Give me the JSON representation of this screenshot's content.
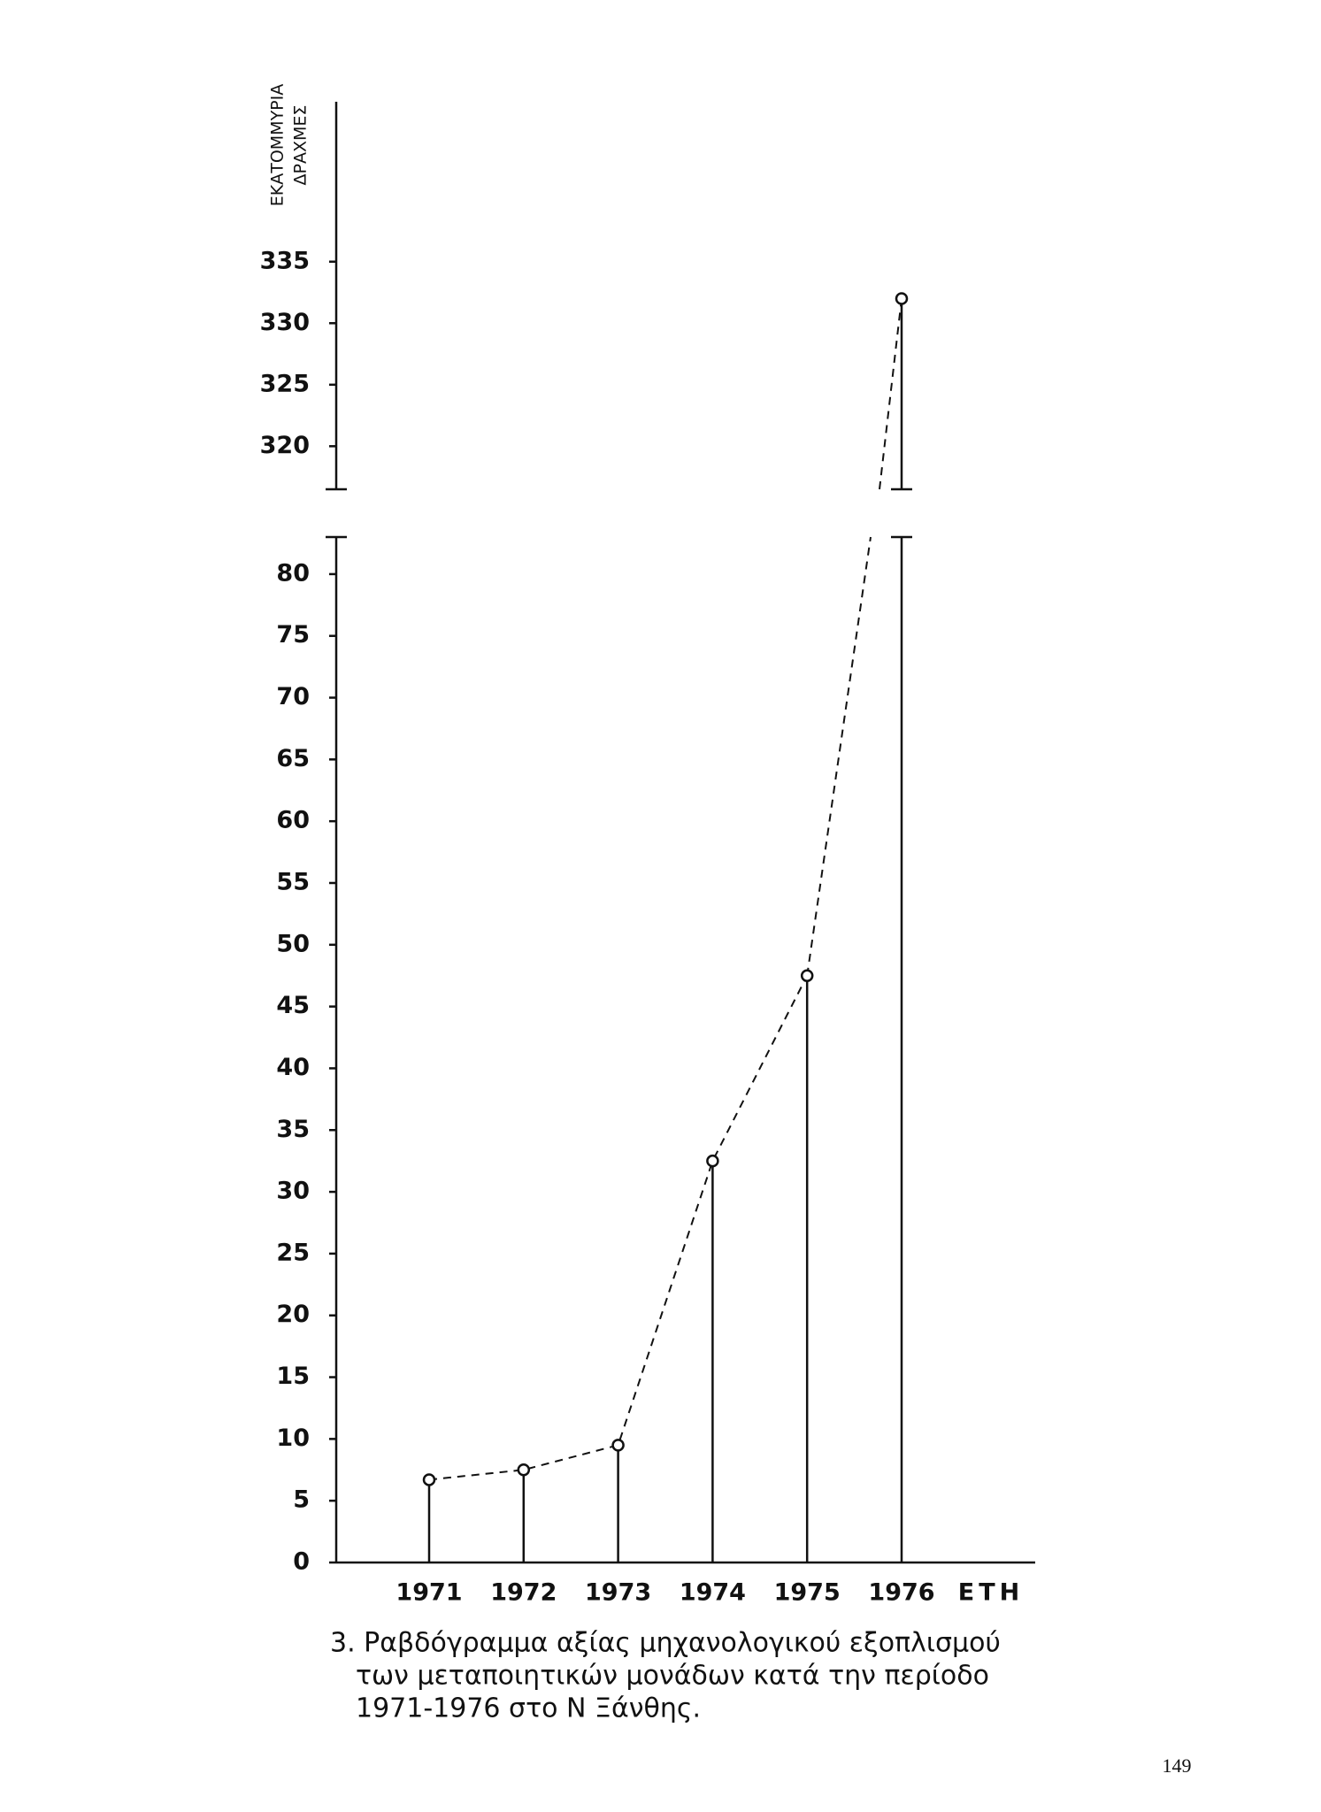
{
  "chart_data": {
    "type": "bar",
    "ylabel": [
      "ΕΚΑΤΟΜΜΥΡΙΑ",
      "ΔΡΑΧΜΕΣ"
    ],
    "xlabel": "ΕΤΗ",
    "categories": [
      "1971",
      "1972",
      "1973",
      "1974",
      "1975",
      "1976"
    ],
    "values": [
      6.7,
      7.5,
      9.5,
      32.5,
      47.5,
      332
    ],
    "color": "#111111",
    "y_segments": [
      {
        "ylim": [
          0,
          83
        ],
        "yticks": [
          0,
          5,
          10,
          15,
          20,
          25,
          30,
          35,
          40,
          45,
          50,
          55,
          60,
          65,
          70,
          75,
          80
        ]
      },
      {
        "ylim": [
          316.5,
          348
        ],
        "yticks": [
          320,
          325,
          330,
          335
        ]
      }
    ],
    "caption": [
      "3. Ραβδόγραμμα αξίας μηχανολογικού εξοπλισμού",
      "των μεταποιητικών μονάδων κατά την περίοδο",
      "1971-1976 στο Ν Ξάνθης."
    ]
  },
  "page_number": "149"
}
